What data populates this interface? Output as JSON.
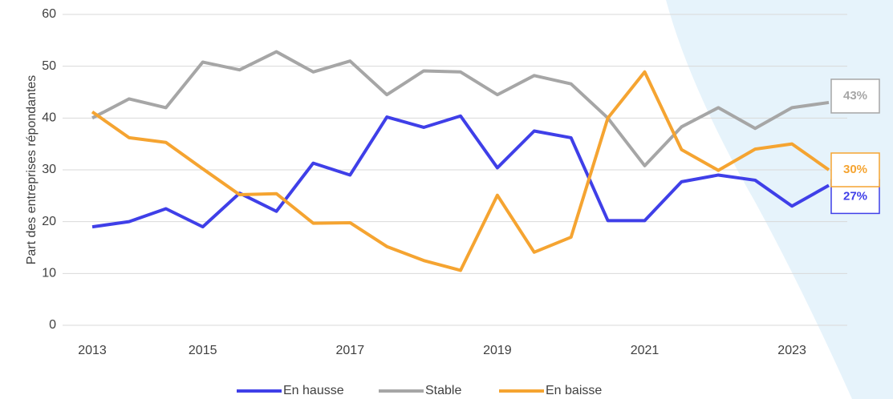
{
  "chart_data": {
    "type": "line",
    "y_label": "Part des entreprises répondantes",
    "categories": [
      "2013",
      null,
      null,
      "2015",
      null,
      null,
      null,
      "2017",
      null,
      null,
      null,
      "2019",
      null,
      null,
      null,
      "2021",
      null,
      null,
      null,
      "2023",
      null
    ],
    "series": [
      {
        "name": "En hausse",
        "color": "#3f3fe8",
        "values": [
          19,
          20,
          22.5,
          19,
          25.5,
          22,
          31.3,
          29,
          40.2,
          38.2,
          40.4,
          30.4,
          37.5,
          36.2,
          20.2,
          20.2,
          27.7,
          29,
          28,
          23,
          27
        ],
        "value_labels": [
          null,
          null,
          null,
          null,
          null,
          null,
          null,
          null,
          null,
          null,
          null,
          null,
          null,
          null,
          null,
          null,
          null,
          null,
          null,
          null,
          "27%"
        ]
      },
      {
        "name": "Stable",
        "color": "#a6a6a6",
        "values": [
          40,
          43.7,
          42,
          50.8,
          49.3,
          52.8,
          48.9,
          51,
          44.5,
          49.1,
          48.9,
          44.5,
          48.2,
          46.6,
          40,
          30.8,
          38.3,
          42,
          38,
          42,
          43
        ],
        "value_labels": [
          null,
          null,
          null,
          null,
          null,
          null,
          null,
          null,
          null,
          null,
          null,
          null,
          null,
          null,
          null,
          null,
          null,
          null,
          null,
          null,
          "43%"
        ]
      },
      {
        "name": "En baisse",
        "color": "#f5a431",
        "values": [
          41.2,
          36.2,
          35.3,
          30.2,
          25.2,
          25.4,
          19.7,
          19.8,
          15.2,
          12.5,
          10.6,
          25.1,
          14.1,
          17,
          40,
          48.9,
          33.9,
          29.9,
          34,
          35,
          30
        ],
        "value_labels": [
          null,
          null,
          null,
          null,
          null,
          null,
          null,
          null,
          null,
          null,
          null,
          null,
          null,
          null,
          null,
          null,
          null,
          null,
          null,
          null,
          "30%"
        ]
      }
    ],
    "ylim": [
      0,
      60
    ],
    "yticks": [
      0,
      10,
      20,
      30,
      40,
      50,
      60
    ],
    "grid": true,
    "legend": "bottom"
  }
}
